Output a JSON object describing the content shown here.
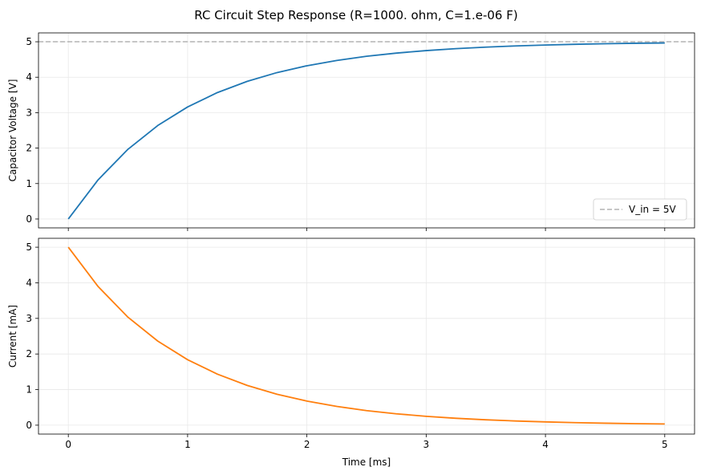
{
  "figure_title": "RC Circuit Step Response (R=1000. ohm, C=1.e-06 F)",
  "colors": {
    "voltage": "#1f77b4",
    "current": "#ff7f0e",
    "reference": "#b3b3b3",
    "grid": "#e8e8e8",
    "axis": "#000000"
  },
  "chart_data": [
    {
      "type": "line",
      "title": "",
      "xlabel": "",
      "ylabel": "Capacitor Voltage [V]",
      "xlim": [
        -0.25,
        5.25
      ],
      "ylim": [
        -0.25,
        5.25
      ],
      "xticks": [
        0,
        1,
        2,
        3,
        4,
        5
      ],
      "yticks": [
        0,
        1,
        2,
        3,
        4,
        5
      ],
      "show_xtick_labels": false,
      "grid": true,
      "legend": "lower-right",
      "series": [
        {
          "name": "",
          "color": "#1f77b4",
          "x": [
            0,
            0.25,
            0.5,
            0.75,
            1.0,
            1.25,
            1.5,
            1.75,
            2.0,
            2.25,
            2.5,
            2.75,
            3.0,
            3.25,
            3.5,
            3.75,
            4.0,
            4.25,
            4.5,
            4.75,
            5.0
          ],
          "y": [
            0,
            1.106,
            1.967,
            2.638,
            3.161,
            3.567,
            3.884,
            4.131,
            4.323,
            4.473,
            4.59,
            4.68,
            4.751,
            4.806,
            4.849,
            4.882,
            4.908,
            4.929,
            4.944,
            4.957,
            4.966
          ]
        }
      ],
      "reference_line": {
        "label": "V_in = 5V",
        "y": 5
      }
    },
    {
      "type": "line",
      "title": "",
      "xlabel": "Time [ms]",
      "ylabel": "Current [mA]",
      "xlim": [
        -0.25,
        5.25
      ],
      "ylim": [
        -0.25,
        5.25
      ],
      "xticks": [
        0,
        1,
        2,
        3,
        4,
        5
      ],
      "yticks": [
        0,
        1,
        2,
        3,
        4,
        5
      ],
      "show_xtick_labels": true,
      "grid": true,
      "series": [
        {
          "name": "",
          "color": "#ff7f0e",
          "x": [
            0,
            0.25,
            0.5,
            0.75,
            1.0,
            1.25,
            1.5,
            1.75,
            2.0,
            2.25,
            2.5,
            2.75,
            3.0,
            3.25,
            3.5,
            3.75,
            4.0,
            4.25,
            4.5,
            4.75,
            5.0
          ],
          "y": [
            5.0,
            3.894,
            3.033,
            2.362,
            1.839,
            1.433,
            1.116,
            0.869,
            0.677,
            0.527,
            0.41,
            0.32,
            0.249,
            0.194,
            0.151,
            0.118,
            0.092,
            0.071,
            0.056,
            0.043,
            0.034
          ]
        }
      ]
    }
  ]
}
